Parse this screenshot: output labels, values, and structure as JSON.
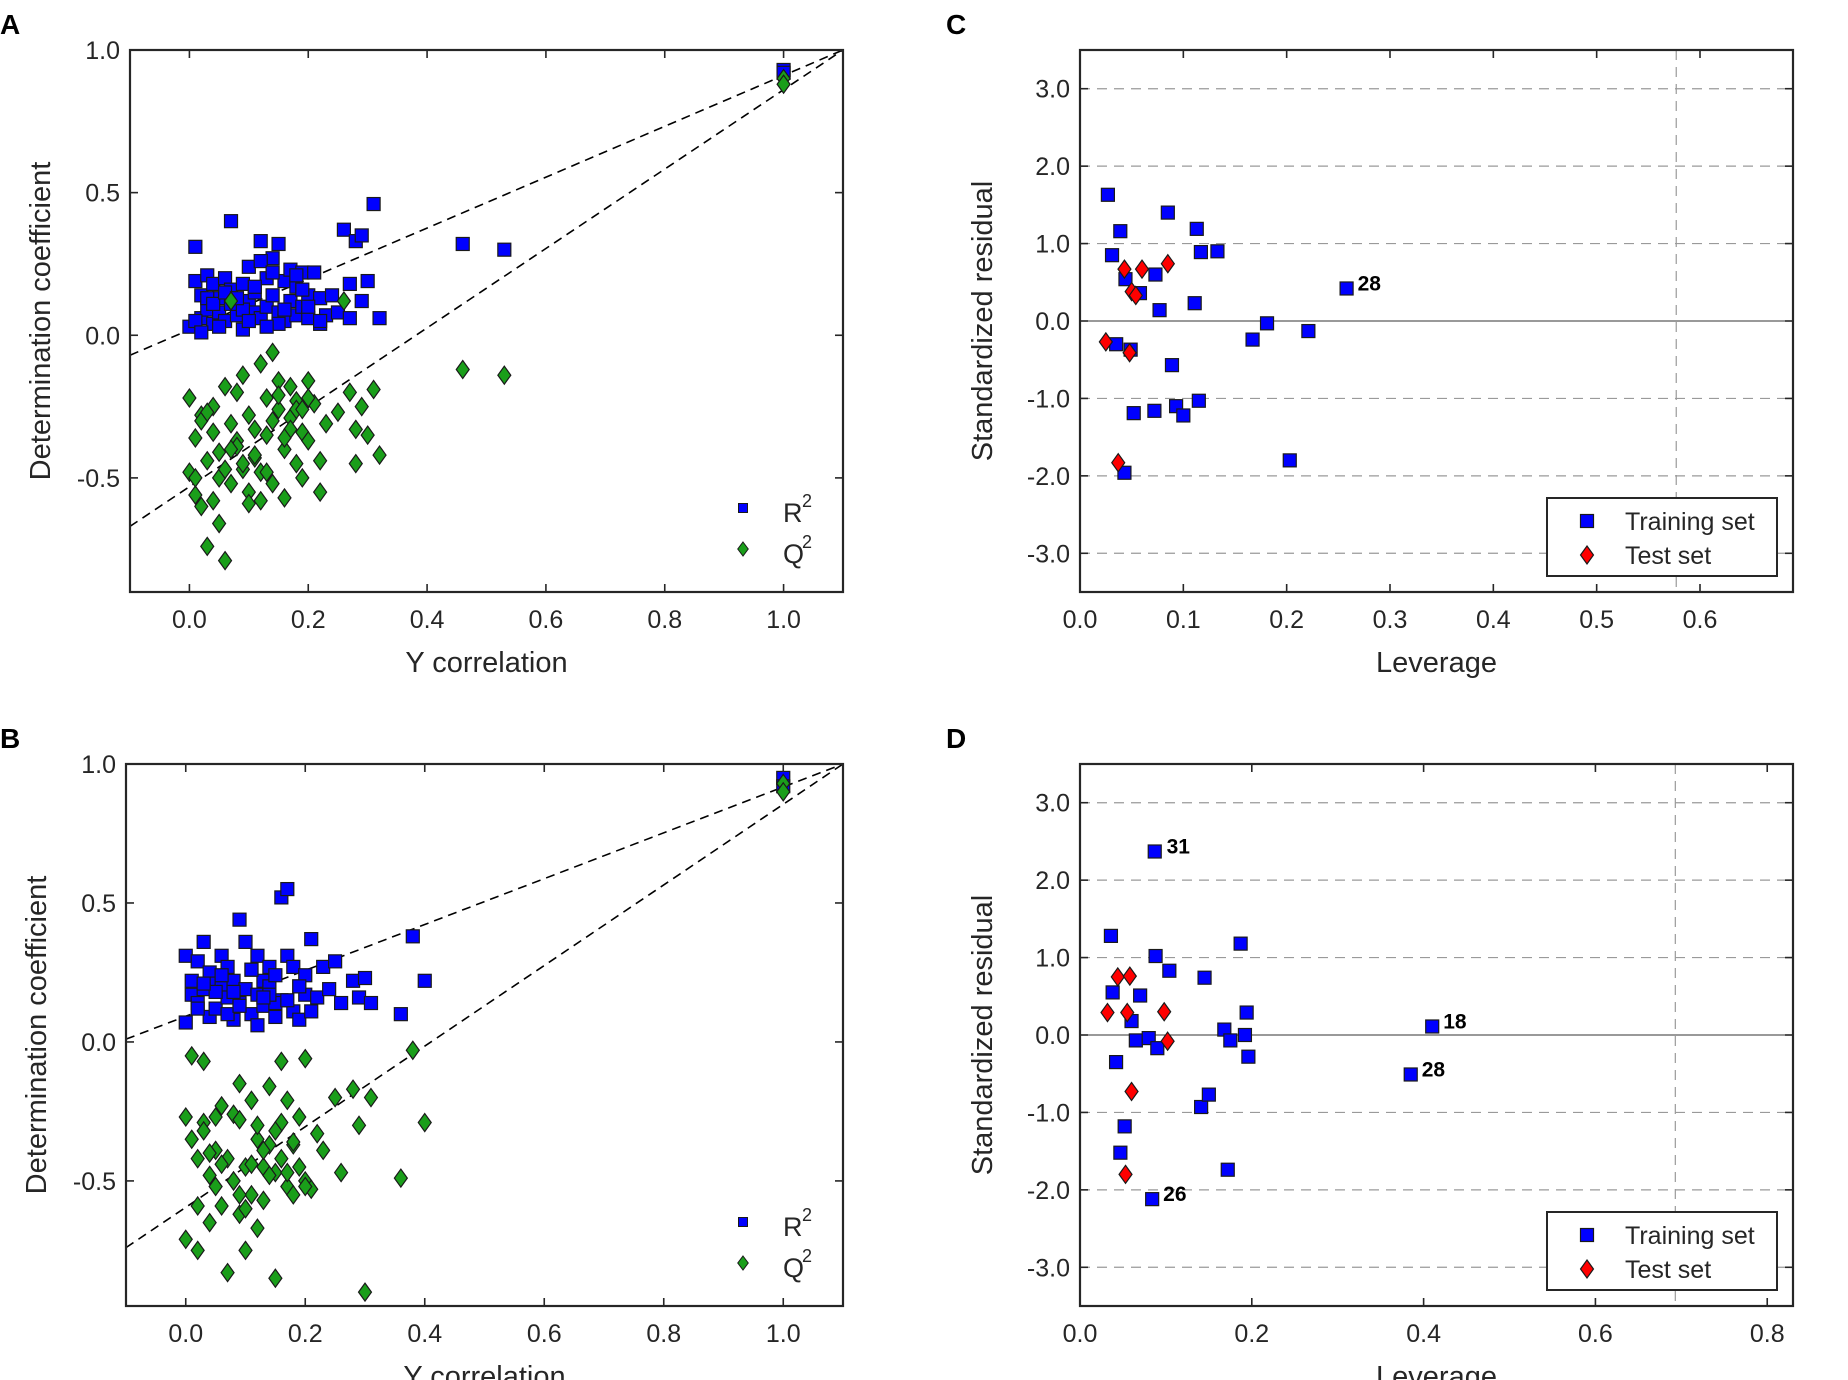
{
  "figure": {
    "panel_a_letter": "A",
    "panel_b_letter": "B",
    "panel_c_letter": "C",
    "panel_d_letter": "D"
  },
  "colors": {
    "r2": "#0000ff",
    "q2": "#1a9e1a",
    "train": "#0000ff",
    "test": "#ff0000",
    "axis": "#262626",
    "grid": "#9a9a9a"
  },
  "chart_data": [
    {
      "id": "A",
      "type": "scatter",
      "title": "",
      "xlabel": "Y correlation",
      "ylabel": "Determination coefficient",
      "xlim": [
        -0.1,
        1.1
      ],
      "ylim": [
        -0.9,
        1.0
      ],
      "xticks": [
        0.0,
        0.2,
        0.4,
        0.6,
        0.8,
        1.0
      ],
      "xtick_labels": [
        "0.0",
        "0.2",
        "0.4",
        "0.6",
        "0.8",
        "1.0"
      ],
      "yticks": [
        -0.5,
        0.0,
        0.5,
        1.0
      ],
      "ytick_labels": [
        "-0.5",
        "0.0",
        "0.5",
        "1.0"
      ],
      "legend": {
        "position": "bottom-right",
        "r2_base": "R",
        "q2_base": "Q",
        "sup": "2"
      },
      "trend_lines": [
        {
          "name": "R2 intercept line",
          "x": [
            -0.1,
            1.1
          ],
          "y": [
            -0.07,
            1.0
          ]
        },
        {
          "name": "Q2 intercept line",
          "x": [
            -0.1,
            1.1
          ],
          "y": [
            -0.67,
            1.0
          ]
        }
      ],
      "series": [
        {
          "name": "R2",
          "marker": "square",
          "x": [
            0.0,
            0.01,
            0.01,
            0.02,
            0.02,
            0.03,
            0.03,
            0.04,
            0.04,
            0.05,
            0.05,
            0.06,
            0.06,
            0.07,
            0.07,
            0.08,
            0.08,
            0.09,
            0.09,
            0.1,
            0.1,
            0.11,
            0.11,
            0.12,
            0.12,
            0.13,
            0.13,
            0.14,
            0.14,
            0.15,
            0.15,
            0.16,
            0.16,
            0.17,
            0.17,
            0.18,
            0.18,
            0.19,
            0.19,
            0.2,
            0.2,
            0.21,
            0.22,
            0.22,
            0.23,
            0.25,
            0.26,
            0.27,
            0.27,
            0.28,
            0.29,
            0.3,
            0.31,
            0.32,
            0.46,
            0.53,
            0.07,
            0.12,
            0.14,
            0.01,
            0.03,
            0.05,
            0.09,
            0.11,
            0.15,
            0.19,
            0.24,
            0.29,
            0.2,
            0.1,
            0.04,
            0.16,
            0.06,
            0.13,
            0.18,
            0.02,
            0.08,
            0.22,
            1.0,
            1.0
          ],
          "y": [
            0.03,
            0.19,
            0.31,
            0.14,
            0.06,
            0.21,
            0.09,
            0.18,
            0.04,
            0.13,
            0.08,
            0.2,
            0.05,
            0.4,
            0.16,
            0.11,
            0.07,
            0.18,
            0.02,
            0.12,
            0.24,
            0.08,
            0.15,
            0.33,
            0.06,
            0.2,
            0.1,
            0.27,
            0.14,
            0.32,
            0.08,
            0.19,
            0.05,
            0.23,
            0.12,
            0.17,
            0.07,
            0.22,
            0.1,
            0.14,
            0.06,
            0.22,
            0.13,
            0.04,
            0.07,
            0.08,
            0.37,
            0.18,
            0.06,
            0.33,
            0.12,
            0.19,
            0.46,
            0.06,
            0.32,
            0.3,
            0.11,
            0.26,
            0.22,
            0.05,
            0.13,
            0.03,
            0.09,
            0.17,
            0.04,
            0.16,
            0.14,
            0.35,
            0.1,
            0.05,
            0.11,
            0.09,
            0.15,
            0.03,
            0.21,
            0.01,
            0.13,
            0.05,
            0.93,
            0.92
          ]
        },
        {
          "name": "Q2",
          "marker": "diamond",
          "x": [
            0.0,
            0.0,
            0.01,
            0.01,
            0.02,
            0.02,
            0.03,
            0.03,
            0.04,
            0.04,
            0.05,
            0.05,
            0.06,
            0.06,
            0.07,
            0.07,
            0.08,
            0.08,
            0.09,
            0.09,
            0.1,
            0.1,
            0.11,
            0.11,
            0.12,
            0.12,
            0.13,
            0.13,
            0.14,
            0.14,
            0.15,
            0.15,
            0.16,
            0.16,
            0.17,
            0.17,
            0.18,
            0.18,
            0.19,
            0.19,
            0.2,
            0.2,
            0.21,
            0.22,
            0.22,
            0.23,
            0.25,
            0.27,
            0.28,
            0.28,
            0.29,
            0.3,
            0.31,
            0.32,
            0.46,
            0.53,
            0.02,
            0.05,
            0.08,
            0.12,
            0.14,
            0.18,
            0.06,
            0.1,
            0.15,
            0.03,
            0.11,
            0.17,
            0.2,
            0.01,
            0.07,
            0.13,
            0.16,
            0.04,
            0.09,
            0.19,
            0.07,
            0.26,
            1.0,
            1.0
          ],
          "y": [
            -0.22,
            -0.48,
            -0.36,
            -0.56,
            -0.28,
            -0.6,
            -0.44,
            -0.74,
            -0.25,
            -0.58,
            -0.41,
            -0.66,
            -0.18,
            -0.79,
            -0.31,
            -0.52,
            -0.2,
            -0.37,
            -0.47,
            -0.14,
            -0.28,
            -0.55,
            -0.33,
            -0.43,
            -0.1,
            -0.48,
            -0.22,
            -0.35,
            -0.06,
            -0.52,
            -0.26,
            -0.16,
            -0.4,
            -0.57,
            -0.18,
            -0.29,
            -0.45,
            -0.23,
            -0.34,
            -0.5,
            -0.16,
            -0.37,
            -0.24,
            -0.55,
            -0.44,
            -0.31,
            -0.27,
            -0.2,
            -0.45,
            -0.33,
            -0.25,
            -0.35,
            -0.19,
            -0.42,
            -0.12,
            -0.14,
            -0.3,
            -0.5,
            -0.39,
            -0.58,
            -0.3,
            -0.26,
            -0.47,
            -0.59,
            -0.21,
            -0.27,
            -0.42,
            -0.33,
            -0.22,
            -0.5,
            -0.4,
            -0.48,
            -0.36,
            -0.34,
            -0.45,
            -0.26,
            0.12,
            0.12,
            0.9,
            0.88
          ]
        }
      ]
    },
    {
      "id": "B",
      "type": "scatter",
      "title": "",
      "xlabel": "Y correlation",
      "ylabel": "Determination coefficient",
      "xlim": [
        -0.1,
        1.1
      ],
      "ylim": [
        -0.95,
        1.0
      ],
      "xticks": [
        0.0,
        0.2,
        0.4,
        0.6,
        0.8,
        1.0
      ],
      "xtick_labels": [
        "0.0",
        "0.2",
        "0.4",
        "0.6",
        "0.8",
        "1.0"
      ],
      "yticks": [
        -0.5,
        0.0,
        0.5,
        1.0
      ],
      "ytick_labels": [
        "-0.5",
        "0.0",
        "0.5",
        "1.0"
      ],
      "legend": {
        "position": "bottom-right",
        "r2_base": "R",
        "q2_base": "Q",
        "sup": "2"
      },
      "trend_lines": [
        {
          "name": "R2 intercept line",
          "x": [
            -0.1,
            1.1
          ],
          "y": [
            0.01,
            1.0
          ]
        },
        {
          "name": "Q2 intercept line",
          "x": [
            -0.1,
            1.1
          ],
          "y": [
            -0.74,
            1.0
          ]
        }
      ],
      "series": [
        {
          "name": "R2",
          "marker": "square",
          "x": [
            0.0,
            0.0,
            0.01,
            0.01,
            0.02,
            0.02,
            0.03,
            0.03,
            0.04,
            0.04,
            0.05,
            0.05,
            0.06,
            0.06,
            0.07,
            0.07,
            0.08,
            0.08,
            0.09,
            0.09,
            0.1,
            0.1,
            0.11,
            0.11,
            0.12,
            0.12,
            0.13,
            0.13,
            0.14,
            0.14,
            0.15,
            0.15,
            0.16,
            0.16,
            0.17,
            0.17,
            0.18,
            0.18,
            0.19,
            0.19,
            0.2,
            0.2,
            0.21,
            0.22,
            0.23,
            0.24,
            0.25,
            0.26,
            0.28,
            0.29,
            0.3,
            0.31,
            0.36,
            0.38,
            0.4,
            0.12,
            0.07,
            0.02,
            0.15,
            0.05,
            0.09,
            0.19,
            0.11,
            0.14,
            0.03,
            0.08,
            0.17,
            0.21,
            0.06,
            0.13,
            1.0,
            1.0
          ],
          "y": [
            0.31,
            0.07,
            0.22,
            0.17,
            0.29,
            0.14,
            0.36,
            0.19,
            0.25,
            0.09,
            0.21,
            0.12,
            0.31,
            0.2,
            0.16,
            0.27,
            0.08,
            0.22,
            0.44,
            0.14,
            0.36,
            0.19,
            0.26,
            0.1,
            0.31,
            0.17,
            0.22,
            0.13,
            0.27,
            0.2,
            0.09,
            0.24,
            0.52,
            0.15,
            0.55,
            0.31,
            0.27,
            0.11,
            0.2,
            0.08,
            0.17,
            0.24,
            0.37,
            0.16,
            0.27,
            0.19,
            0.29,
            0.14,
            0.22,
            0.16,
            0.23,
            0.14,
            0.1,
            0.38,
            0.22,
            0.06,
            0.1,
            0.12,
            0.14,
            0.18,
            0.13,
            0.2,
            0.26,
            0.17,
            0.21,
            0.18,
            0.15,
            0.11,
            0.24,
            0.16,
            0.95,
            0.92
          ]
        },
        {
          "name": "Q2",
          "marker": "diamond",
          "x": [
            0.0,
            0.0,
            0.01,
            0.01,
            0.02,
            0.02,
            0.03,
            0.03,
            0.04,
            0.04,
            0.05,
            0.05,
            0.06,
            0.06,
            0.07,
            0.07,
            0.08,
            0.08,
            0.09,
            0.09,
            0.1,
            0.1,
            0.11,
            0.11,
            0.12,
            0.12,
            0.13,
            0.13,
            0.14,
            0.14,
            0.15,
            0.15,
            0.16,
            0.16,
            0.17,
            0.17,
            0.18,
            0.18,
            0.19,
            0.19,
            0.2,
            0.2,
            0.21,
            0.22,
            0.23,
            0.25,
            0.26,
            0.28,
            0.29,
            0.3,
            0.31,
            0.36,
            0.38,
            0.4,
            0.03,
            0.06,
            0.09,
            0.13,
            0.16,
            0.2,
            0.05,
            0.1,
            0.14,
            0.02,
            0.08,
            0.12,
            0.18,
            0.04,
            0.11,
            0.15,
            0.09,
            0.17,
            1.0,
            1.0
          ],
          "y": [
            -0.27,
            -0.71,
            -0.05,
            -0.35,
            -0.42,
            -0.59,
            -0.29,
            -0.07,
            -0.48,
            -0.65,
            -0.39,
            -0.52,
            -0.59,
            -0.23,
            -0.83,
            -0.42,
            -0.5,
            -0.26,
            -0.62,
            -0.15,
            -0.45,
            -0.75,
            -0.21,
            -0.55,
            -0.35,
            -0.3,
            -0.57,
            -0.45,
            -0.37,
            -0.16,
            -0.85,
            -0.47,
            -0.07,
            -0.29,
            -0.52,
            -0.21,
            -0.37,
            -0.55,
            -0.27,
            -0.45,
            -0.5,
            -0.06,
            -0.53,
            -0.33,
            -0.39,
            -0.2,
            -0.47,
            -0.17,
            -0.3,
            -0.9,
            -0.2,
            -0.49,
            -0.03,
            -0.29,
            -0.32,
            -0.44,
            -0.55,
            -0.39,
            -0.42,
            -0.52,
            -0.27,
            -0.6,
            -0.48,
            -0.75,
            -0.5,
            -0.67,
            -0.36,
            -0.4,
            -0.44,
            -0.32,
            -0.28,
            -0.47,
            0.93,
            0.9
          ]
        }
      ]
    },
    {
      "id": "C",
      "type": "scatter",
      "title": "",
      "xlabel": "Leverage",
      "ylabel": "Standardized residual",
      "xlim": [
        0.0,
        0.69
      ],
      "ylim": [
        -3.5,
        3.5
      ],
      "xticks": [
        0.0,
        0.1,
        0.2,
        0.3,
        0.4,
        0.5,
        0.6
      ],
      "xtick_labels": [
        "0.0",
        "0.1",
        "0.2",
        "0.3",
        "0.4",
        "0.5",
        "0.6"
      ],
      "yticks": [
        -3.0,
        -2.0,
        -1.0,
        0.0,
        1.0,
        2.0,
        3.0
      ],
      "ytick_labels": [
        "-3.0",
        "-2.0",
        "-1.0",
        "0.0",
        "1.0",
        "2.0",
        "3.0"
      ],
      "grid": true,
      "warning_leverage": 0.577,
      "legend": {
        "position": "bottom-right",
        "train_label": "Training set",
        "test_label": "Test set"
      },
      "series": [
        {
          "name": "Training set",
          "marker": "square",
          "x": [
            0.027,
            0.031,
            0.035,
            0.039,
            0.043,
            0.044,
            0.049,
            0.052,
            0.058,
            0.072,
            0.073,
            0.077,
            0.085,
            0.089,
            0.093,
            0.1,
            0.111,
            0.113,
            0.115,
            0.117,
            0.133,
            0.167,
            0.181,
            0.203,
            0.221,
            0.258
          ],
          "y": [
            1.63,
            0.85,
            -0.3,
            1.16,
            -1.96,
            0.54,
            -0.37,
            -1.19,
            0.36,
            -1.16,
            0.6,
            0.14,
            1.4,
            -0.57,
            -1.1,
            -1.22,
            0.23,
            1.19,
            -1.03,
            0.89,
            0.9,
            -0.24,
            -0.03,
            -1.8,
            -0.13,
            0.42
          ]
        },
        {
          "name": "Test set",
          "marker": "diamond",
          "x": [
            0.025,
            0.037,
            0.043,
            0.048,
            0.05,
            0.054,
            0.06,
            0.085
          ],
          "y": [
            -0.27,
            -1.83,
            0.67,
            -0.41,
            0.38,
            0.33,
            0.67,
            0.74
          ]
        }
      ],
      "annotations": [
        {
          "text": "28",
          "x": 0.258,
          "y": 0.42
        }
      ]
    },
    {
      "id": "D",
      "type": "scatter",
      "title": "",
      "xlabel": "Leverage",
      "ylabel": "Standardized residual",
      "xlim": [
        0.0,
        0.83
      ],
      "ylim": [
        -3.5,
        3.5
      ],
      "xticks": [
        0.0,
        0.2,
        0.4,
        0.6,
        0.8
      ],
      "xtick_labels": [
        "0.0",
        "0.2",
        "0.4",
        "0.6",
        "0.8"
      ],
      "yticks": [
        -3.0,
        -2.0,
        -1.0,
        0.0,
        1.0,
        2.0,
        3.0
      ],
      "ytick_labels": [
        "-3.0",
        "-2.0",
        "-1.0",
        "0.0",
        "1.0",
        "2.0",
        "3.0"
      ],
      "grid": true,
      "warning_leverage": 0.693,
      "legend": {
        "position": "bottom-right",
        "train_label": "Training set",
        "test_label": "Test set"
      },
      "series": [
        {
          "name": "Training set",
          "marker": "square",
          "x": [
            0.036,
            0.038,
            0.042,
            0.047,
            0.052,
            0.06,
            0.065,
            0.07,
            0.08,
            0.084,
            0.087,
            0.088,
            0.09,
            0.104,
            0.141,
            0.145,
            0.15,
            0.168,
            0.172,
            0.175,
            0.187,
            0.192,
            0.194,
            0.196,
            0.385,
            0.41
          ],
          "y": [
            1.28,
            0.55,
            -0.35,
            -1.52,
            -1.18,
            0.18,
            -0.07,
            0.51,
            -0.04,
            -2.12,
            2.37,
            1.02,
            -0.17,
            0.83,
            -0.93,
            0.74,
            -0.77,
            0.07,
            -1.74,
            -0.07,
            1.18,
            0.0,
            0.29,
            -0.28,
            -0.51,
            0.11
          ]
        },
        {
          "name": "Test set",
          "marker": "diamond",
          "x": [
            0.032,
            0.044,
            0.053,
            0.055,
            0.058,
            0.06,
            0.098,
            0.102
          ],
          "y": [
            0.29,
            0.75,
            -1.8,
            0.29,
            0.76,
            -0.73,
            0.3,
            -0.08
          ]
        }
      ],
      "annotations": [
        {
          "text": "31",
          "x": 0.088,
          "y": 2.37
        },
        {
          "text": "18",
          "x": 0.41,
          "y": 0.11
        },
        {
          "text": "28",
          "x": 0.385,
          "y": -0.51
        },
        {
          "text": "26",
          "x": 0.084,
          "y": -2.12
        }
      ]
    }
  ]
}
